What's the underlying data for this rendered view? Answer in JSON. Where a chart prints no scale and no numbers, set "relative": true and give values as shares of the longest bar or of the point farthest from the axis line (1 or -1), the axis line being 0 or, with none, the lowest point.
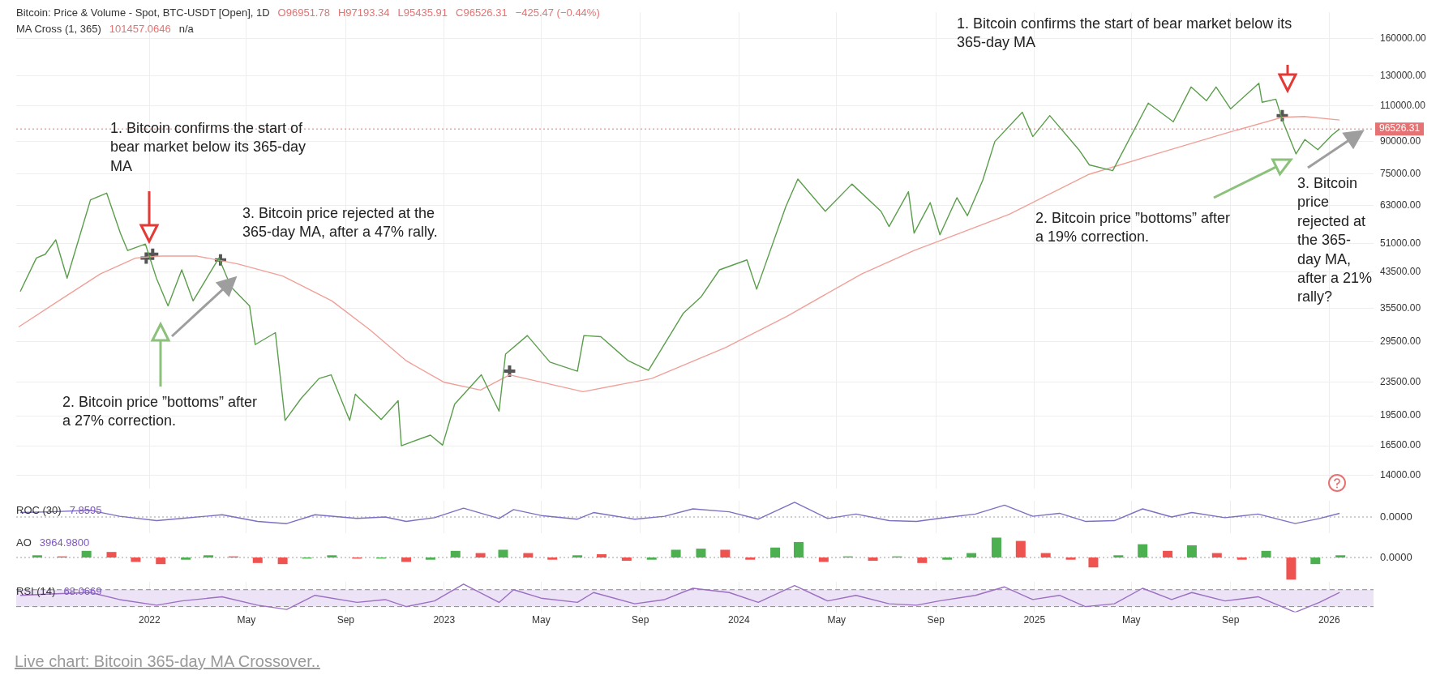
{
  "chart_data": [
    {
      "type": "line",
      "title": "Bitcoin: Price & Volume - Spot, BTC-USDT [Open], 1D",
      "annotations": [
        "O96951.78",
        "H97193.34",
        "L95435.91",
        "C96526.31",
        "−425.47 (−0.44%)",
        "MA Cross (1, 365)",
        "101457.0646",
        "n/a",
        "Live chart: Bitcoin 365-day MA Crossover..",
        "1. Bitcoin confirms the start of bear market below its 365-day MA",
        "2. Bitcoin price ”bottoms” after a 27% correction.",
        "3. Bitcoin price rejected at the 365-day MA, after a 47% rally.",
        "1. Bitcoin confirms the start of bear market below its 365-day MA",
        "2. Bitcoin price ”bottoms” after a 19% correction.",
        "3. Bitcoin price rejected at the 365-day MA, after a 21% rally?"
      ],
      "series": [
        {
          "color": "#5a9e4b",
          "x": [
            "2021-07-25",
            "2021-08-14",
            "2021-08-25",
            "2021-09-07",
            "2021-09-21",
            "2021-10-20",
            "2021-11-09",
            "2021-11-26",
            "2021-12-05",
            "2021-12-27",
            "2022-01-10",
            "2022-01-24",
            "2022-02-10",
            "2022-02-24",
            "2022-03-28",
            "2022-04-12",
            "2022-05-05",
            "2022-05-12",
            "2022-06-06",
            "2022-06-18",
            "2022-07-08",
            "2022-07-30",
            "2022-08-14",
            "2022-09-06",
            "2022-09-13",
            "2022-10-15",
            "2022-11-05",
            "2022-11-09",
            "2022-12-15",
            "2022-12-30",
            "2023-01-14",
            "2023-02-16",
            "2023-03-10",
            "2023-03-18",
            "2023-04-14",
            "2023-05-12",
            "2023-06-15",
            "2023-06-23",
            "2023-07-14",
            "2023-08-17",
            "2023-09-11",
            "2023-10-24",
            "2023-11-15",
            "2023-12-08",
            "2024-01-11",
            "2024-01-23",
            "2024-02-28",
            "2024-03-14",
            "2024-04-17",
            "2024-05-20",
            "2024-06-25",
            "2024-07-05",
            "2024-07-29",
            "2024-08-05",
            "2024-08-25",
            "2024-09-06",
            "2024-09-27",
            "2024-10-10",
            "2024-10-29",
            "2024-11-13",
            "2024-12-17",
            "2024-12-30",
            "2025-01-20",
            "2025-02-25",
            "2025-03-10",
            "2025-04-08",
            "2025-05-22",
            "2025-06-22",
            "2025-07-14",
            "2025-08-02",
            "2025-08-14",
            "2025-09-01",
            "2025-10-06",
            "2025-10-10",
            "2025-10-27",
            "2025-11-04",
            "2025-11-21",
            "2025-12-02",
            "2025-12-18",
            "2026-01-05",
            "2026-01-14"
          ],
          "values": [
            39000,
            47000,
            48000,
            52000,
            42000,
            65000,
            67500,
            54000,
            49000,
            50800,
            41800,
            36000,
            44000,
            37000,
            47000,
            40000,
            36000,
            29000,
            31000,
            19000,
            21500,
            24000,
            24500,
            19000,
            22000,
            19100,
            21200,
            16500,
            17500,
            16550,
            20800,
            24500,
            20000,
            27500,
            30500,
            26300,
            25000,
            30500,
            30300,
            26500,
            25100,
            34500,
            37800,
            44000,
            46500,
            39500,
            62500,
            73000,
            61000,
            71000,
            61000,
            56000,
            68000,
            54000,
            64000,
            53500,
            65800,
            59500,
            72500,
            90000,
            106000,
            92500,
            104000,
            86000,
            79000,
            76500,
            111500,
            100500,
            122000,
            113000,
            122000,
            108000,
            124500,
            112000,
            114000,
            101500,
            84000,
            91000,
            86000,
            93500,
            96526.31
          ]
        },
        {
          "color": "#f0a098",
          "x": [
            "2021-07-23",
            "2021-09-15",
            "2021-11-01",
            "2021-12-15",
            "2022-01-15",
            "2022-03-01",
            "2022-04-20",
            "2022-06-15",
            "2022-08-15",
            "2022-10-01",
            "2022-11-15",
            "2023-01-01",
            "2023-02-15",
            "2023-03-23",
            "2023-06-22",
            "2023-09-15",
            "2023-12-15",
            "2024-03-01",
            "2024-06-01",
            "2024-08-05",
            "2024-10-01",
            "2024-12-01",
            "2025-03-10",
            "2025-06-01",
            "2025-09-01",
            "2025-11-04",
            "2025-12-01",
            "2026-01-14"
          ],
          "values": [
            32000,
            37500,
            43000,
            47000,
            47500,
            47500,
            45500,
            42500,
            37000,
            31500,
            26500,
            23500,
            22500,
            24500,
            22300,
            24000,
            28500,
            34000,
            43000,
            49000,
            54000,
            60000,
            75000,
            84000,
            95000,
            103000,
            103500,
            101457.0646
          ]
        },
        {
          "type": "scatter",
          "color": "#555555",
          "marker": "cross",
          "x": [
            "2021-12-28",
            "2022-01-05",
            "2022-03-30",
            "2023-03-23",
            "2025-11-04"
          ],
          "values": [
            47000,
            48000,
            46500,
            25000,
            104000
          ]
        }
      ],
      "marker": "none",
      "log": "y",
      "grid": true,
      "tick_labels": "y",
      "xlim": [
        "2021-07-20",
        "2026-02-25"
      ],
      "xticks": [
        {
          "value": "2022-01-01",
          "label": null
        },
        {
          "value": "2022-05-01",
          "label": null
        },
        {
          "value": "2022-09-01",
          "label": null
        },
        {
          "value": "2023-01-01",
          "label": null
        },
        {
          "value": "2023-05-01",
          "label": null
        },
        {
          "value": "2023-09-01",
          "label": null
        },
        {
          "value": "2024-01-01",
          "label": null
        },
        {
          "value": "2024-05-01",
          "label": null
        },
        {
          "value": "2024-09-01",
          "label": null
        },
        {
          "value": "2025-01-01",
          "label": null
        },
        {
          "value": "2025-05-01",
          "label": null
        },
        {
          "value": "2025-09-01",
          "label": null
        },
        {
          "value": "2026-01-01",
          "label": null
        }
      ],
      "ylim": [
        13000,
        185000
      ],
      "yticks": [
        {
          "value": 14000,
          "label": "14000.00"
        },
        {
          "value": 16500,
          "label": "16500.00"
        },
        {
          "value": 19500,
          "label": "19500.00"
        },
        {
          "value": 23500,
          "label": "23500.00"
        },
        {
          "value": 29500,
          "label": "29500.00"
        },
        {
          "value": 35500,
          "label": "35500.00"
        },
        {
          "value": 43500,
          "label": "43500.00"
        },
        {
          "value": 51000,
          "label": "51000.00"
        },
        {
          "value": 63000,
          "label": "63000.00"
        },
        {
          "value": 75000,
          "label": "75000.00"
        },
        {
          "value": 90000,
          "label": "90000.00"
        },
        {
          "value": 110000,
          "label": "110000.00"
        },
        {
          "value": 130000,
          "label": "130000.00"
        },
        {
          "value": 160000,
          "label": "160000.00"
        }
      ],
      "ref_lines": [
        {
          "axis": "y",
          "value": 96526.31,
          "label": "96526.31",
          "color": "#e57373",
          "line_style": "dotted"
        }
      ]
    },
    {
      "type": "line",
      "title": "ROC (30)",
      "annotations": [
        "7.8595"
      ],
      "relative": true,
      "grid": "x",
      "tick_labels": false,
      "xlim": [
        "2021-07-20",
        "2026-02-25"
      ],
      "xticks": [
        {
          "value": "2022-01-01",
          "label": null
        },
        {
          "value": "2022-05-01",
          "label": null
        },
        {
          "value": "2022-09-01",
          "label": null
        },
        {
          "value": "2023-01-01",
          "label": null
        },
        {
          "value": "2023-05-01",
          "label": null
        },
        {
          "value": "2023-09-01",
          "label": null
        },
        {
          "value": "2024-01-01",
          "label": null
        },
        {
          "value": "2024-05-01",
          "label": null
        },
        {
          "value": "2024-09-01",
          "label": null
        },
        {
          "value": "2025-01-01",
          "label": null
        },
        {
          "value": "2025-05-01",
          "label": null
        },
        {
          "value": "2025-09-01",
          "label": null
        },
        {
          "value": "2026-01-01",
          "label": null
        }
      ],
      "series": [
        {
          "color": "#7e6fc2",
          "x": [
            "2021-07-25",
            "2021-09-01",
            "2021-10-20",
            "2021-11-25",
            "2022-01-10",
            "2022-02-10",
            "2022-04-01",
            "2022-05-15",
            "2022-06-20",
            "2022-07-25",
            "2022-09-15",
            "2022-10-20",
            "2022-11-15",
            "2022-12-20",
            "2023-01-25",
            "2023-03-10",
            "2023-03-28",
            "2023-05-01",
            "2023-06-15",
            "2023-07-05",
            "2023-08-25",
            "2023-10-01",
            "2023-11-05",
            "2023-12-20",
            "2024-01-25",
            "2024-03-10",
            "2024-04-20",
            "2024-05-25",
            "2024-07-05",
            "2024-08-08",
            "2024-09-05",
            "2024-10-20",
            "2024-11-25",
            "2024-12-30",
            "2025-02-01",
            "2025-03-05",
            "2025-04-10",
            "2025-05-15",
            "2025-06-20",
            "2025-07-15",
            "2025-08-25",
            "2025-10-05",
            "2025-11-20",
            "2025-12-20",
            "2026-01-14"
          ],
          "values": [
            0.3,
            0.35,
            0.45,
            0.05,
            -0.25,
            -0.1,
            0.15,
            -0.3,
            -0.45,
            0.15,
            -0.1,
            0.0,
            -0.3,
            -0.05,
            0.6,
            -0.1,
            0.5,
            0.1,
            -0.15,
            0.3,
            -0.15,
            0.05,
            0.55,
            0.35,
            -0.15,
            1,
            -0.1,
            0.2,
            -0.25,
            -0.3,
            -0.1,
            0.2,
            0.8,
            0.05,
            0.25,
            -0.3,
            -0.25,
            0.55,
            0.0,
            0.3,
            -0.05,
            0.2,
            -0.45,
            -0.1,
            0.25
          ]
        }
      ],
      "ref_lines": [
        {
          "axis": "y",
          "value": 0,
          "label": "0.0000",
          "color": "#9e9e9e",
          "line_style": "dotted"
        }
      ]
    },
    {
      "type": "bar",
      "title": "AO",
      "annotations": [
        "3964.9800"
      ],
      "relative": true,
      "tick_labels": false,
      "xlim": [
        "2021-07-20",
        "2026-02-25"
      ],
      "x": [
        "2021-08-15",
        "2021-09-15",
        "2021-10-15",
        "2021-11-15",
        "2021-12-15",
        "2022-01-15",
        "2022-02-15",
        "2022-03-15",
        "2022-04-15",
        "2022-05-15",
        "2022-06-15",
        "2022-07-15",
        "2022-08-15",
        "2022-09-15",
        "2022-10-15",
        "2022-11-15",
        "2022-12-15",
        "2023-01-15",
        "2023-02-15",
        "2023-03-15",
        "2023-04-15",
        "2023-05-15",
        "2023-06-15",
        "2023-07-15",
        "2023-08-15",
        "2023-09-15",
        "2023-10-15",
        "2023-11-15",
        "2023-12-15",
        "2024-01-15",
        "2024-02-15",
        "2024-03-15",
        "2024-04-15",
        "2024-05-15",
        "2024-06-15",
        "2024-07-15",
        "2024-08-15",
        "2024-09-15",
        "2024-10-15",
        "2024-11-15",
        "2024-12-15",
        "2025-01-15",
        "2025-02-15",
        "2025-03-15",
        "2025-04-15",
        "2025-05-15",
        "2025-06-15",
        "2025-07-15",
        "2025-08-15",
        "2025-09-15",
        "2025-10-15",
        "2025-11-15",
        "2025-12-15",
        "2026-01-15"
      ],
      "values": [
        0.1,
        0.05,
        0.3,
        0.25,
        -0.2,
        -0.3,
        -0.1,
        0.1,
        0.05,
        -0.25,
        -0.3,
        -0.05,
        0.1,
        -0.05,
        -0.05,
        -0.2,
        -0.1,
        0.3,
        0.2,
        0.35,
        0.2,
        -0.1,
        0.1,
        0.15,
        -0.15,
        -0.1,
        0.35,
        0.4,
        0.35,
        -0.1,
        0.45,
        0.7,
        -0.2,
        0.05,
        -0.15,
        0.05,
        -0.25,
        -0.1,
        0.2,
        0.9,
        0.75,
        0.2,
        -0.1,
        -0.45,
        0.1,
        0.6,
        0.3,
        0.55,
        0.2,
        -0.1,
        0.3,
        -1,
        -0.3,
        0.1
      ],
      "colors": [
        "#4caf50",
        "#ef5350",
        "#4caf50",
        "#ef5350",
        "#ef5350",
        "#ef5350",
        "#4caf50",
        "#4caf50",
        "#ef5350",
        "#ef5350",
        "#ef5350",
        "#4caf50",
        "#4caf50",
        "#ef5350",
        "#4caf50",
        "#ef5350",
        "#4caf50",
        "#4caf50",
        "#ef5350",
        "#4caf50",
        "#ef5350",
        "#ef5350",
        "#4caf50",
        "#ef5350",
        "#ef5350",
        "#4caf50",
        "#4caf50",
        "#4caf50",
        "#ef5350",
        "#ef5350",
        "#4caf50",
        "#4caf50",
        "#ef5350",
        "#4caf50",
        "#ef5350",
        "#4caf50",
        "#ef5350",
        "#4caf50",
        "#4caf50",
        "#4caf50",
        "#ef5350",
        "#ef5350",
        "#ef5350",
        "#ef5350",
        "#4caf50",
        "#4caf50",
        "#ef5350",
        "#4caf50",
        "#ef5350",
        "#ef5350",
        "#4caf50",
        "#ef5350",
        "#4caf50",
        "#4caf50"
      ],
      "ref_lines": [
        {
          "axis": "y",
          "value": 0,
          "label": "0.0000",
          "color": "#9e9e9e",
          "line_style": "dotted"
        }
      ]
    },
    {
      "type": "line",
      "title": "RSI (14)",
      "annotations": [
        "68.0669"
      ],
      "relative": true,
      "grid": "x",
      "tick_labels": "x",
      "xlim": [
        "2021-07-20",
        "2026-02-25"
      ],
      "xticks": [
        {
          "value": "2022-01-01",
          "label": "2022"
        },
        {
          "value": "2022-05-01",
          "label": "May"
        },
        {
          "value": "2022-09-01",
          "label": "Sep"
        },
        {
          "value": "2023-01-01",
          "label": "2023"
        },
        {
          "value": "2023-05-01",
          "label": "May"
        },
        {
          "value": "2023-09-01",
          "label": "Sep"
        },
        {
          "value": "2024-01-01",
          "label": "2024"
        },
        {
          "value": "2024-05-01",
          "label": "May"
        },
        {
          "value": "2024-09-01",
          "label": "Sep"
        },
        {
          "value": "2025-01-01",
          "label": "2025"
        },
        {
          "value": "2025-05-01",
          "label": "May"
        },
        {
          "value": "2025-09-01",
          "label": "Sep"
        },
        {
          "value": "2026-01-01",
          "label": "2026"
        }
      ],
      "series": [
        {
          "color": "#9c6fc2",
          "x": [
            "2021-07-25",
            "2021-09-01",
            "2021-10-20",
            "2021-11-25",
            "2022-01-10",
            "2022-02-10",
            "2022-04-01",
            "2022-05-15",
            "2022-06-20",
            "2022-07-25",
            "2022-09-15",
            "2022-10-20",
            "2022-11-15",
            "2022-12-20",
            "2023-01-25",
            "2023-03-10",
            "2023-03-28",
            "2023-05-01",
            "2023-06-15",
            "2023-07-05",
            "2023-08-25",
            "2023-10-01",
            "2023-11-05",
            "2023-12-20",
            "2024-01-25",
            "2024-03-10",
            "2024-04-20",
            "2024-05-25",
            "2024-07-05",
            "2024-08-08",
            "2024-09-05",
            "2024-10-20",
            "2024-11-25",
            "2024-12-30",
            "2025-02-01",
            "2025-03-05",
            "2025-04-10",
            "2025-05-15",
            "2025-06-20",
            "2025-07-15",
            "2025-08-25",
            "2025-10-05",
            "2025-11-20",
            "2025-12-20",
            "2026-01-14"
          ],
          "values": [
            0.6,
            0.65,
            0.7,
            0.45,
            0.25,
            0.4,
            0.55,
            0.25,
            0.1,
            0.6,
            0.35,
            0.45,
            0.2,
            0.4,
            1,
            0.35,
            0.8,
            0.5,
            0.35,
            0.7,
            0.3,
            0.45,
            0.85,
            0.7,
            0.35,
            0.95,
            0.4,
            0.6,
            0.3,
            0.25,
            0.4,
            0.6,
            0.9,
            0.45,
            0.6,
            0.2,
            0.3,
            0.85,
            0.45,
            0.7,
            0.4,
            0.55,
            0,
            0.35,
            0.7
          ]
        }
      ],
      "bands": [
        {
          "axis": "y",
          "from": 0.2,
          "to": 0.8,
          "color": "#ece3f6"
        }
      ],
      "ref_lines": [
        {
          "axis": "y",
          "value": 0.2,
          "color": "#888888",
          "line_style": "dashed"
        },
        {
          "axis": "y",
          "value": 0.8,
          "color": "#888888",
          "line_style": "dashed"
        }
      ]
    }
  ]
}
